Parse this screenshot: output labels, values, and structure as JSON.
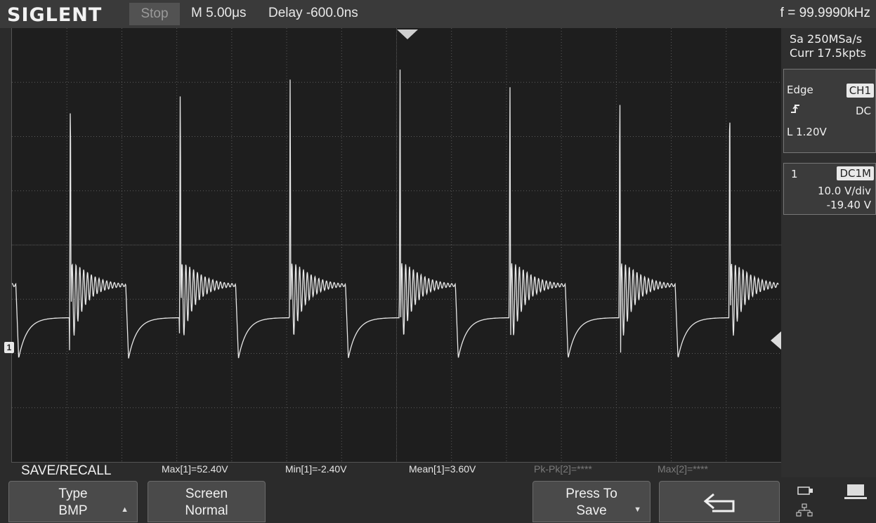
{
  "header": {
    "brand": "SIGLENT",
    "run_state": "Stop",
    "timebase": "M 5.00μs",
    "delay": "Delay -600.0ns",
    "frequency": "f = 99.9990kHz"
  },
  "acquisition": {
    "sample_rate": "Sa 250MSa/s",
    "current_points": "Curr 17.5kpts"
  },
  "trigger": {
    "type": "Edge",
    "source": "CH1",
    "slope_icon": "rising-edge-icon",
    "coupling": "DC",
    "level": "L  1.20V"
  },
  "channel": {
    "number": "1",
    "coupling": "DC1M",
    "scale": "10.0 V/div",
    "offset": "-19.40 V",
    "marker": "1"
  },
  "menu": {
    "title": "SAVE/RECALL",
    "softkeys": [
      {
        "line1": "Type",
        "line2": "BMP"
      },
      {
        "line1": "Screen",
        "line2": "Normal"
      },
      {
        "line1": "Press To",
        "line2": "Save"
      },
      {
        "icon": "return-arrow-icon"
      }
    ]
  },
  "measurements": [
    {
      "text": "Max[1]=52.40V"
    },
    {
      "text": "Min[1]=-2.40V"
    },
    {
      "text": "Mean[1]=3.60V"
    },
    {
      "text": "Pk-Pk[2]=****"
    },
    {
      "text": "Max[2]=****"
    }
  ],
  "waveform": {
    "cycles": 7,
    "period_divs": 2,
    "peak_v": 52.4,
    "min_v": -2.4,
    "baseline_v": 3.6
  },
  "colors": {
    "trace": "#e8e8e8",
    "grid": "#5c5c5c",
    "screen_bg": "#1e1e1e"
  }
}
